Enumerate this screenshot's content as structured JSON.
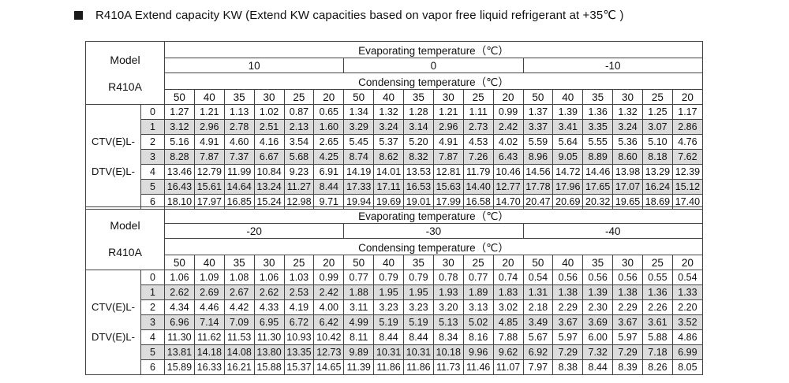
{
  "title": "R410A Extend capacity KW (Extend KW capacities based on vapor free liquid refrigerant at +35℃ )",
  "tables": [
    {
      "model_label": "Model",
      "refrigerant_label": "R410A",
      "evap_header": "Evaporating temperature（℃）",
      "evap_temps": [
        "10",
        "0",
        "-10"
      ],
      "cond_header": "Condensing temperature（℃）",
      "cond_temps": [
        "50",
        "40",
        "35",
        "30",
        "25",
        "20"
      ],
      "series_labels": [
        "CTV(E)L-",
        "DTV(E)L-"
      ],
      "rows": [
        {
          "index": "0",
          "values": [
            "1.27",
            "1.21",
            "1.13",
            "1.02",
            "0.87",
            "0.65",
            "1.34",
            "1.32",
            "1.28",
            "1.21",
            "1.11",
            "0.99",
            "1.37",
            "1.39",
            "1.36",
            "1.32",
            "1.25",
            "1.17"
          ]
        },
        {
          "index": "1",
          "values": [
            "3.12",
            "2.96",
            "2.78",
            "2.51",
            "2.13",
            "1.60",
            "3.29",
            "3.24",
            "3.14",
            "2.96",
            "2.73",
            "2.42",
            "3.37",
            "3.41",
            "3.35",
            "3.24",
            "3.07",
            "2.86"
          ]
        },
        {
          "index": "2",
          "values": [
            "5.16",
            "4.91",
            "4.60",
            "4.16",
            "3.54",
            "2.65",
            "5.45",
            "5.37",
            "5.20",
            "4.91",
            "4.53",
            "4.02",
            "5.59",
            "5.64",
            "5.55",
            "5.36",
            "5.10",
            "4.76"
          ]
        },
        {
          "index": "3",
          "values": [
            "8.28",
            "7.87",
            "7.37",
            "6.67",
            "5.68",
            "4.25",
            "8.74",
            "8.62",
            "8.32",
            "7.87",
            "7.26",
            "6.43",
            "8.96",
            "9.05",
            "8.89",
            "8.60",
            "8.18",
            "7.62"
          ]
        },
        {
          "index": "4",
          "values": [
            "13.46",
            "12.79",
            "11.99",
            "10.84",
            "9.23",
            "6.91",
            "14.19",
            "14.01",
            "13.53",
            "12.81",
            "11.79",
            "10.46",
            "14.56",
            "14.72",
            "14.46",
            "13.98",
            "13.29",
            "12.39"
          ]
        },
        {
          "index": "5",
          "values": [
            "16.43",
            "15.61",
            "14.64",
            "13.24",
            "11.27",
            "8.44",
            "17.33",
            "17.11",
            "16.53",
            "15.63",
            "14.40",
            "12.77",
            "17.78",
            "17.96",
            "17.65",
            "17.07",
            "16.24",
            "15.12"
          ]
        },
        {
          "index": "6",
          "values": [
            "18.10",
            "17.97",
            "16.85",
            "15.24",
            "12.98",
            "9.71",
            "19.94",
            "19.69",
            "19.01",
            "17.99",
            "16.58",
            "14.70",
            "20.47",
            "20.69",
            "20.32",
            "19.65",
            "18.69",
            "17.40"
          ]
        }
      ]
    },
    {
      "model_label": "Model",
      "refrigerant_label": "R410A",
      "evap_header": "Evaporating temperature（℃）",
      "evap_temps": [
        "-20",
        "-30",
        "-40"
      ],
      "cond_header": "Condensing temperature（℃）",
      "cond_temps": [
        "50",
        "40",
        "35",
        "30",
        "25",
        "20"
      ],
      "series_labels": [
        "CTV(E)L-",
        "DTV(E)L-"
      ],
      "rows": [
        {
          "index": "0",
          "values": [
            "1.06",
            "1.09",
            "1.08",
            "1.06",
            "1.03",
            "0.99",
            "0.77",
            "0.79",
            "0.79",
            "0.78",
            "0.77",
            "0.74",
            "0.54",
            "0.56",
            "0.56",
            "0.56",
            "0.55",
            "0.54"
          ]
        },
        {
          "index": "1",
          "values": [
            "2.62",
            "2.69",
            "2.67",
            "2.62",
            "2.53",
            "2.42",
            "1.88",
            "1.95",
            "1.95",
            "1.93",
            "1.89",
            "1.83",
            "1.31",
            "1.38",
            "1.39",
            "1.38",
            "1.36",
            "1.33"
          ]
        },
        {
          "index": "2",
          "values": [
            "4.34",
            "4.46",
            "4.42",
            "4.33",
            "4.19",
            "4.00",
            "3.11",
            "3.23",
            "3.23",
            "3.20",
            "3.13",
            "3.02",
            "2.18",
            "2.29",
            "2.30",
            "2.29",
            "2.26",
            "2.20"
          ]
        },
        {
          "index": "3",
          "values": [
            "6.96",
            "7.14",
            "7.09",
            "6.95",
            "6.72",
            "6.42",
            "4.99",
            "5.19",
            "5.19",
            "5.13",
            "5.02",
            "4.85",
            "3.49",
            "3.67",
            "3.69",
            "3.67",
            "3.61",
            "3.52"
          ]
        },
        {
          "index": "4",
          "values": [
            "11.30",
            "11.62",
            "11.53",
            "11.30",
            "10.93",
            "10.42",
            "8.11",
            "8.44",
            "8.44",
            "8.34",
            "8.16",
            "7.88",
            "5.67",
            "5.97",
            "6.00",
            "5.97",
            "5.88",
            "4.86"
          ]
        },
        {
          "index": "5",
          "values": [
            "13.81",
            "14.18",
            "14.08",
            "13.80",
            "13.35",
            "12.73",
            "9.89",
            "10.31",
            "10.31",
            "10.18",
            "9.96",
            "9.62",
            "6.92",
            "7.29",
            "7.32",
            "7.29",
            "7.18",
            "6.99"
          ]
        },
        {
          "index": "6",
          "values": [
            "15.89",
            "16.33",
            "16.21",
            "15.88",
            "15.37",
            "14.65",
            "11.39",
            "11.86",
            "11.86",
            "11.73",
            "11.46",
            "11.07",
            "7.97",
            "8.38",
            "8.44",
            "8.39",
            "8.26",
            "8.05"
          ]
        }
      ]
    }
  ]
}
